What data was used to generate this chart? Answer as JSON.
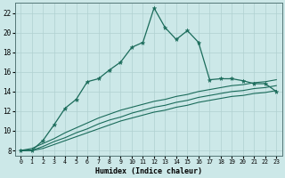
{
  "xlabel": "Humidex (Indice chaleur)",
  "xlim": [
    -0.5,
    23.5
  ],
  "ylim": [
    7.5,
    23.0
  ],
  "xticks": [
    0,
    1,
    2,
    3,
    4,
    5,
    6,
    7,
    8,
    9,
    10,
    11,
    12,
    13,
    14,
    15,
    16,
    17,
    18,
    19,
    20,
    21,
    22,
    23
  ],
  "yticks": [
    8,
    10,
    12,
    14,
    16,
    18,
    20,
    22
  ],
  "bg_color": "#cce8e8",
  "line_color": "#1a6b5a",
  "grid_color": "#b0d0d0",
  "main_x": [
    0,
    1,
    2,
    3,
    4,
    5,
    6,
    7,
    8,
    9,
    10,
    11,
    12,
    13,
    14,
    15,
    16,
    17,
    18,
    19,
    20,
    21,
    22,
    23
  ],
  "main_y": [
    8.0,
    8.0,
    9.0,
    10.6,
    12.3,
    13.2,
    15.0,
    15.3,
    16.2,
    17.0,
    18.5,
    19.0,
    22.5,
    20.5,
    19.3,
    20.2,
    19.0,
    15.2,
    15.3,
    15.3,
    15.1,
    14.8,
    14.8,
    14.0
  ],
  "diag1_x": [
    0,
    1,
    2,
    3,
    4,
    5,
    6,
    7,
    8,
    9,
    10,
    11,
    12,
    13,
    14,
    15,
    16,
    17,
    18,
    19,
    20,
    21,
    22,
    23
  ],
  "diag1_y": [
    8.0,
    8.2,
    8.7,
    9.2,
    9.8,
    10.3,
    10.8,
    11.3,
    11.7,
    12.1,
    12.4,
    12.7,
    13.0,
    13.2,
    13.5,
    13.7,
    14.0,
    14.2,
    14.4,
    14.6,
    14.7,
    14.9,
    15.0,
    15.2
  ],
  "diag2_x": [
    0,
    1,
    2,
    3,
    4,
    5,
    6,
    7,
    8,
    9,
    10,
    11,
    12,
    13,
    14,
    15,
    16,
    17,
    18,
    19,
    20,
    21,
    22,
    23
  ],
  "diag2_y": [
    8.0,
    8.0,
    8.4,
    8.9,
    9.3,
    9.8,
    10.2,
    10.7,
    11.1,
    11.4,
    11.8,
    12.1,
    12.4,
    12.6,
    12.9,
    13.1,
    13.4,
    13.6,
    13.8,
    14.0,
    14.1,
    14.3,
    14.4,
    14.6
  ],
  "diag3_x": [
    0,
    1,
    2,
    3,
    4,
    5,
    6,
    7,
    8,
    9,
    10,
    11,
    12,
    13,
    14,
    15,
    16,
    17,
    18,
    19,
    20,
    21,
    22,
    23
  ],
  "diag3_y": [
    8.0,
    8.0,
    8.2,
    8.6,
    9.0,
    9.4,
    9.8,
    10.2,
    10.6,
    11.0,
    11.3,
    11.6,
    11.9,
    12.1,
    12.4,
    12.6,
    12.9,
    13.1,
    13.3,
    13.5,
    13.6,
    13.8,
    13.9,
    14.1
  ]
}
